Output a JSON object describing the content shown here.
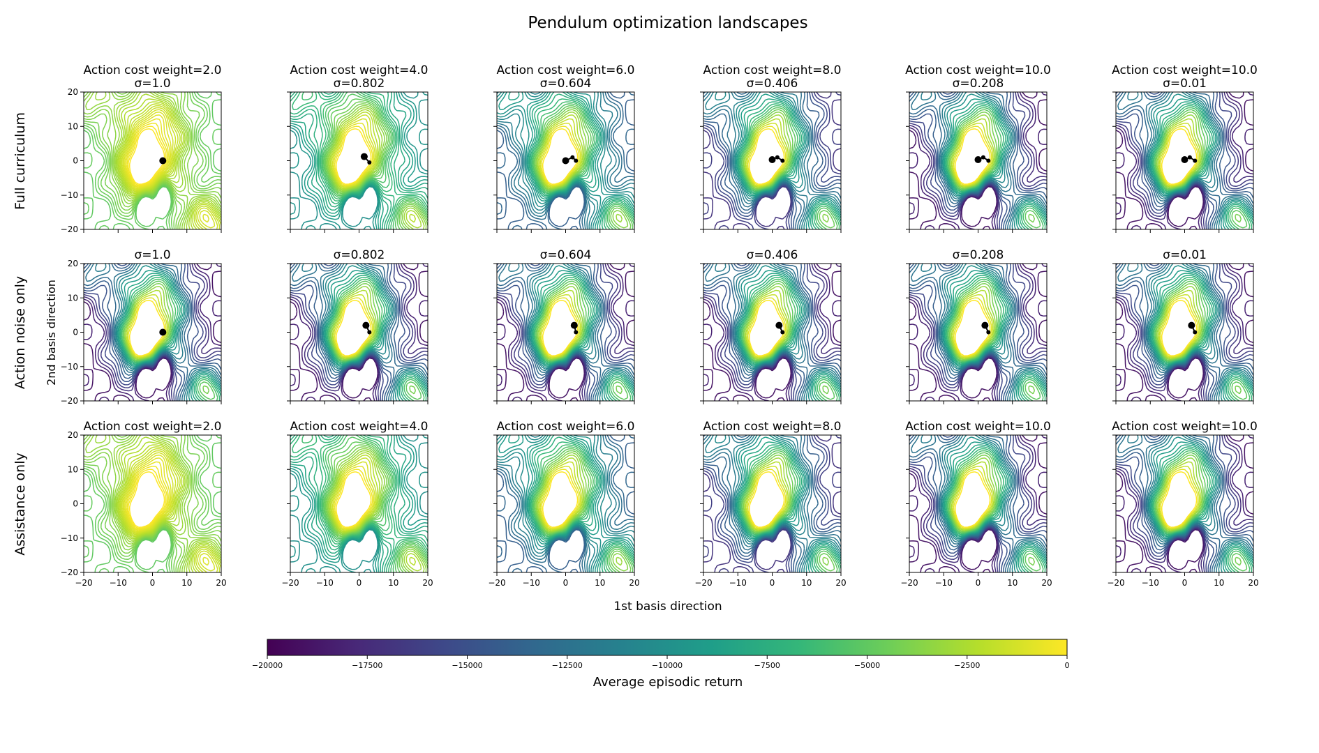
{
  "figure": {
    "title": "Pendulum optimization landscapes",
    "xlabel": "1st basis direction",
    "ylabel": "2nd basis direction"
  },
  "rows": [
    {
      "label": "Full curriculum"
    },
    {
      "label": "Action noise only"
    },
    {
      "label": "Assistance only"
    }
  ],
  "colorbar": {
    "label": "Average episodic return",
    "range": [
      -20000,
      0
    ],
    "ticks": [
      -20000,
      -17500,
      -15000,
      -12500,
      -10000,
      -7500,
      -5000,
      -2500,
      0
    ],
    "tick_labels": [
      "−20000",
      "−17500",
      "−15000",
      "−12500",
      "−10000",
      "−7500",
      "−5000",
      "−2500",
      "0"
    ],
    "colormap": "viridis",
    "colors": [
      "#440154",
      "#482878",
      "#3e4989",
      "#31688e",
      "#26828e",
      "#1f9e89",
      "#35b779",
      "#6ece58",
      "#b5de2b",
      "#fde725"
    ]
  },
  "chart_data": {
    "type": "contour",
    "xlim": [
      -20,
      20
    ],
    "ylim": [
      -20,
      20
    ],
    "x_ticks": [
      -20,
      -10,
      0,
      10,
      20
    ],
    "y_ticks": [
      -20,
      -10,
      0,
      10,
      20
    ],
    "x_tick_labels": [
      "−20",
      "−10",
      "0",
      "10",
      "20"
    ],
    "y_tick_labels": [
      "−20",
      "−10",
      "0",
      "10",
      "20"
    ],
    "panels": [
      {
        "row": 0,
        "col": 0,
        "title_lines": [
          "Action cost weight=2.0",
          "σ=1.0"
        ],
        "lowest_level": -5000,
        "path": [
          [
            3,
            0
          ]
        ]
      },
      {
        "row": 0,
        "col": 1,
        "title_lines": [
          "Action cost weight=4.0",
          "σ=0.802"
        ],
        "lowest_level": -10000,
        "path": [
          [
            1.5,
            1.2
          ],
          [
            3,
            -0.5
          ]
        ]
      },
      {
        "row": 0,
        "col": 2,
        "title_lines": [
          "Action cost weight=6.0",
          "σ=0.604"
        ],
        "lowest_level": -14000,
        "path": [
          [
            0,
            0
          ],
          [
            2,
            1
          ],
          [
            3,
            0
          ]
        ]
      },
      {
        "row": 0,
        "col": 3,
        "title_lines": [
          "Action cost weight=8.0",
          "σ=0.406"
        ],
        "lowest_level": -17000,
        "path": [
          [
            0,
            0.3
          ],
          [
            1.5,
            1
          ],
          [
            3,
            0
          ]
        ]
      },
      {
        "row": 0,
        "col": 4,
        "title_lines": [
          "Action cost weight=10.0",
          "σ=0.208"
        ],
        "lowest_level": -19000,
        "path": [
          [
            0,
            0.3
          ],
          [
            1.5,
            1
          ],
          [
            3,
            0
          ]
        ]
      },
      {
        "row": 0,
        "col": 5,
        "title_lines": [
          "Action cost weight=10.0",
          "σ=0.01"
        ],
        "lowest_level": -19000,
        "path": [
          [
            0,
            0.3
          ],
          [
            1.5,
            1
          ],
          [
            3,
            0
          ]
        ]
      },
      {
        "row": 1,
        "col": 0,
        "title_lines": [
          "σ=1.0"
        ],
        "lowest_level": -19000,
        "path": [
          [
            3,
            0
          ]
        ]
      },
      {
        "row": 1,
        "col": 1,
        "title_lines": [
          "σ=0.802"
        ],
        "lowest_level": -19000,
        "path": [
          [
            2,
            2
          ],
          [
            3,
            0
          ]
        ]
      },
      {
        "row": 1,
        "col": 2,
        "title_lines": [
          "σ=0.604"
        ],
        "lowest_level": -19000,
        "path": [
          [
            2.5,
            2
          ],
          [
            3,
            0
          ]
        ]
      },
      {
        "row": 1,
        "col": 3,
        "title_lines": [
          "σ=0.406"
        ],
        "lowest_level": -19000,
        "path": [
          [
            2,
            2
          ],
          [
            3,
            0
          ]
        ]
      },
      {
        "row": 1,
        "col": 4,
        "title_lines": [
          "σ=0.208"
        ],
        "lowest_level": -19000,
        "path": [
          [
            2,
            2
          ],
          [
            3,
            0
          ]
        ]
      },
      {
        "row": 1,
        "col": 5,
        "title_lines": [
          "σ=0.01"
        ],
        "lowest_level": -19000,
        "path": [
          [
            2,
            2
          ],
          [
            3,
            0
          ]
        ]
      },
      {
        "row": 2,
        "col": 0,
        "title_lines": [
          "Action cost weight=2.0"
        ],
        "lowest_level": -5000,
        "path": []
      },
      {
        "row": 2,
        "col": 1,
        "title_lines": [
          "Action cost weight=4.0"
        ],
        "lowest_level": -10000,
        "path": []
      },
      {
        "row": 2,
        "col": 2,
        "title_lines": [
          "Action cost weight=6.0"
        ],
        "lowest_level": -14000,
        "path": []
      },
      {
        "row": 2,
        "col": 3,
        "title_lines": [
          "Action cost weight=8.0"
        ],
        "lowest_level": -17000,
        "path": []
      },
      {
        "row": 2,
        "col": 4,
        "title_lines": [
          "Action cost weight=10.0"
        ],
        "lowest_level": -19000,
        "path": []
      },
      {
        "row": 2,
        "col": 5,
        "title_lines": [
          "Action cost weight=10.0"
        ],
        "lowest_level": -19000,
        "path": []
      }
    ]
  }
}
